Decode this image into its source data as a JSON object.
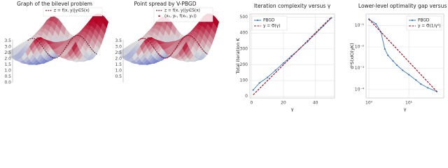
{
  "chart_data": [
    {
      "type": "surface3d",
      "title": "Graph of the bilevel problem",
      "legend_entries": [
        "z = f(x, y)|y∈S(x)"
      ],
      "zticks": [
        {
          "value": 0,
          "label": "0.0"
        },
        0.5,
        {
          "value": 1,
          "label": "1.0"
        },
        1.5,
        {
          "value": 2,
          "label": "2.0"
        },
        2.5,
        {
          "value": 3,
          "label": "3.0"
        },
        3.5
      ]
    },
    {
      "type": "surface3d",
      "title": "Point spread by V-PBGD",
      "legend_entries": [
        "z = f(x, y)|y∈S(x)",
        "(xₖ, yₖ, f(xₖ, yₖ))"
      ],
      "zticks": [
        0.5,
        {
          "value": 1,
          "label": "1.0"
        },
        1.5,
        {
          "value": 2,
          "label": "2.0"
        },
        2.5,
        {
          "value": 3,
          "label": "3.0"
        },
        3.5
      ]
    },
    {
      "type": "line",
      "title": "Iteration complexity versus γ",
      "xlabel": "γ",
      "ylabel": "Total iteration K",
      "xlim": [
        -1,
        52
      ],
      "ylim": [
        -10,
        520
      ],
      "xticks": [
        0,
        20,
        40
      ],
      "yticks": [
        0,
        100,
        200,
        300,
        400,
        500
      ],
      "log_x": false,
      "log_y": false,
      "grid": true,
      "legend": "upper left",
      "series": [
        {
          "name": "PBGD",
          "color": "#3a7bbf",
          "style": "solid",
          "markers": true,
          "x": [
            1,
            5,
            10,
            15,
            20,
            25,
            30,
            35,
            40,
            45,
            50
          ],
          "values": [
            40,
            85,
            120,
            165,
            210,
            255,
            300,
            345,
            395,
            445,
            495
          ]
        },
        {
          "name": "y = Θ(γ)",
          "color": "#a0182c",
          "style": "dashed",
          "markers": false,
          "x": [
            1,
            50
          ],
          "values": [
            10,
            500
          ]
        }
      ]
    },
    {
      "type": "line",
      "title": "Lower-level optimality gap versus γ",
      "xlabel": "γ",
      "ylabel": "d²S(xK)(yK)",
      "xlim": [
        0.85,
        75
      ],
      "ylim": [
        4e-05,
        0.35
      ],
      "xticks": [
        {
          "value": 1,
          "label": "10⁰"
        },
        {
          "value": 10,
          "label": "10¹"
        }
      ],
      "yticks": [
        {
          "value": 0.1,
          "label": "10⁻¹"
        },
        {
          "value": 0.01,
          "label": "10⁻²"
        },
        {
          "value": 0.001,
          "label": "10⁻³"
        },
        {
          "value": 0.0001,
          "label": "10⁻⁴"
        }
      ],
      "log_x": true,
      "log_y": true,
      "grid": true,
      "legend": "upper right",
      "series": [
        {
          "name": "PBGD",
          "color": "#3a7bbf",
          "style": "solid",
          "markers": true,
          "x": [
            1,
            1.5,
            2,
            2.5,
            3,
            4,
            5,
            7,
            10,
            15,
            20,
            30,
            50
          ],
          "values": [
            0.2,
            0.12,
            0.05,
            0.008,
            0.004,
            0.0022,
            0.0014,
            0.0008,
            0.0005,
            0.00028,
            0.00018,
            0.00012,
            8e-05
          ]
        },
        {
          "name": "y = Θ(1/γ²)",
          "color": "#a0182c",
          "style": "dashed",
          "markers": false,
          "x": [
            1,
            50
          ],
          "values": [
            0.2,
            8e-05
          ]
        }
      ]
    }
  ]
}
